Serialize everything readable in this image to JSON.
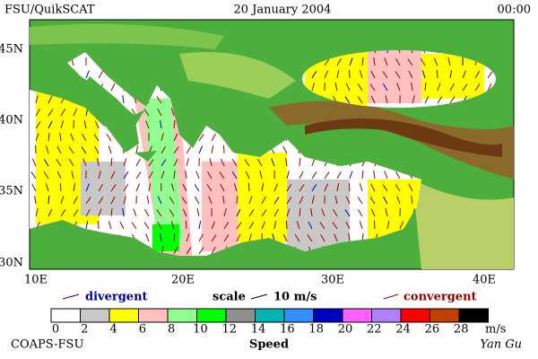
{
  "header": {
    "title": "FSU/QuikSCAT",
    "date": "20 January 2004",
    "time": "00:00"
  },
  "axes": {
    "lat_labels": [
      "45N",
      "40N",
      "35N",
      "30N"
    ],
    "lon_labels": [
      "10E",
      "20E",
      "30E",
      "40E"
    ]
  },
  "legend": {
    "divergent": "divergent",
    "scale": "scale",
    "scale_value": "10 m/s",
    "convergent": "convergent"
  },
  "colorbar": {
    "labels": [
      "0",
      "2",
      "4",
      "6",
      "8",
      "10",
      "12",
      "14",
      "16",
      "18",
      "20",
      "22",
      "24",
      "26",
      "28"
    ],
    "unit": "m/s",
    "title": "Speed"
  },
  "footer": {
    "left": "COAPS-FSU",
    "right": "Yan Gu"
  }
}
